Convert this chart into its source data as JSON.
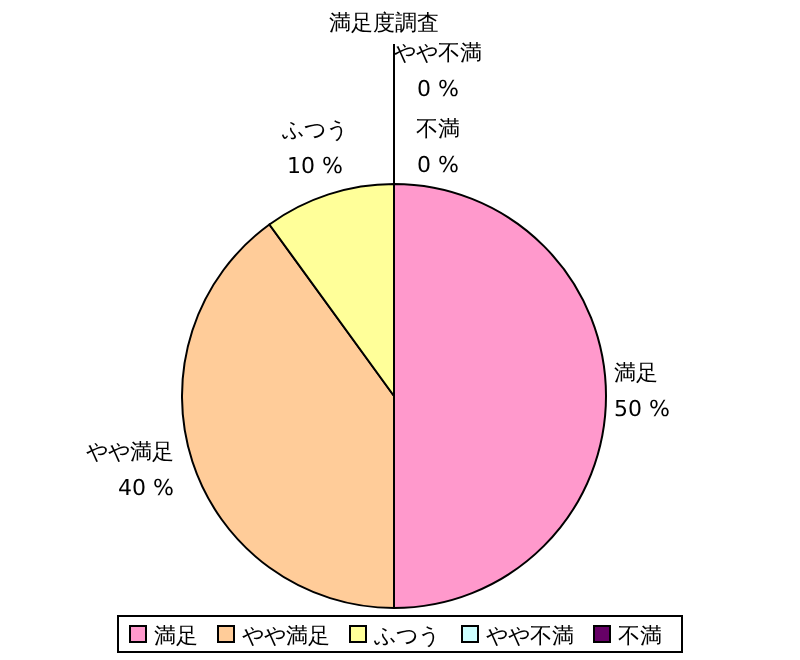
{
  "chart_data": {
    "type": "pie",
    "title": "満足度調査",
    "categories": [
      "満足",
      "やや満足",
      "ふつう",
      "やや不満",
      "不満"
    ],
    "values": [
      50,
      40,
      10,
      0,
      0
    ],
    "colors": [
      "#ff99cc",
      "#ffcc99",
      "#ffff99",
      "#ccffff",
      "#660066"
    ],
    "value_labels": [
      "50 %",
      "40 %",
      "10 %",
      "0 %",
      "0 %"
    ],
    "legend": "bottom"
  }
}
